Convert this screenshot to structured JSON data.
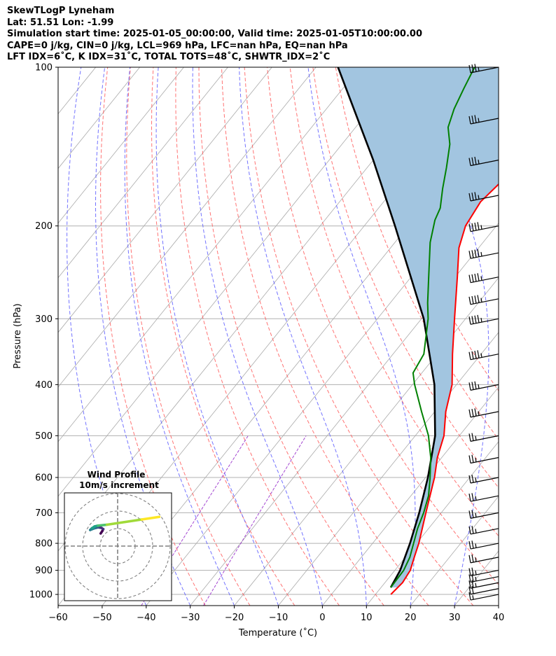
{
  "header": {
    "title": "SkewTLogP Lyneham",
    "location": "Lat: 51.51   Lon: -1.99",
    "times": "Simulation start time: 2025-01-05_00:00:00, Valid time: 2025-01-05T10:00:00.00",
    "indices_1": "CAPE=0 j/kg, CIN=0 j/kg, LCL=969 hPa, LFC=nan hPa, EQ=nan hPa",
    "indices_2": "LFT IDX=6˚C, K IDX=31˚C, TOTAL TOTS=48˚C, SHWTR_IDX=2˚C"
  },
  "chart_data": [
    {
      "type": "line",
      "kind": "skew-T log-P diagram",
      "xlabel": "Temperature (˚C)",
      "ylabel": "Pressure (hPa)",
      "xlim": [
        -60,
        40
      ],
      "ylim": [
        1050,
        100
      ],
      "y_scale": "log",
      "x_ticks": [
        "−60",
        "−50",
        "−40",
        "−30",
        "−20",
        "−10",
        "0",
        "10",
        "20",
        "30",
        "40"
      ],
      "y_ticks": [
        "100",
        "200",
        "300",
        "400",
        "500",
        "600",
        "700",
        "800",
        "900",
        "1000"
      ],
      "colors": {
        "temperature": "#ff0000",
        "dewpoint": "#008000",
        "parcel": "#000000",
        "shading": "#a2c5e0",
        "dry_adiabats": "#ff5a5a",
        "moist_adiabats": "#5a5aff",
        "mixing_ratio": "#9932cc",
        "isotherms": "#aaaaaa"
      },
      "series": [
        {
          "name": "",
          "role": "temperature",
          "points": [
            [
              1000,
              13.5
            ],
            [
              950,
              14.0
            ],
            [
              900,
              13.5
            ],
            [
              850,
              12.0
            ],
            [
              800,
              10.5
            ],
            [
              700,
              6.5
            ],
            [
              600,
              2.0
            ],
            [
              550,
              -1.0
            ],
            [
              500,
              -3.5
            ],
            [
              450,
              -7.5
            ],
            [
              400,
              -11.0
            ],
            [
              350,
              -16.5
            ],
            [
              300,
              -22.5
            ],
            [
              250,
              -29.5
            ],
            [
              220,
              -34.5
            ],
            [
              200,
              -37.0
            ],
            [
              180,
              -38.0
            ],
            [
              165,
              -37.0
            ],
            [
              150,
              -36.0
            ],
            [
              135,
              -37.0
            ],
            [
              120,
              -39.5
            ],
            [
              110,
              -43.0
            ],
            [
              100,
              -46.0
            ]
          ]
        },
        {
          "name": "",
          "role": "dewpoint",
          "points": [
            [
              970,
              12.2
            ],
            [
              900,
              12.0
            ],
            [
              850,
              11.0
            ],
            [
              750,
              7.5
            ],
            [
              700,
              6.0
            ],
            [
              650,
              4.0
            ],
            [
              600,
              1.0
            ],
            [
              550,
              -2.5
            ],
            [
              500,
              -7.0
            ],
            [
              450,
              -13.0
            ],
            [
              400,
              -19.5
            ],
            [
              380,
              -22.0
            ],
            [
              350,
              -23.0
            ],
            [
              300,
              -28.5
            ],
            [
              280,
              -31.5
            ],
            [
              250,
              -36.0
            ],
            [
              215,
              -42.0
            ],
            [
              195,
              -45.0
            ],
            [
              185,
              -46.0
            ],
            [
              170,
              -49.0
            ],
            [
              155,
              -52.0
            ],
            [
              140,
              -55.5
            ],
            [
              130,
              -59.0
            ],
            [
              120,
              -61.0
            ],
            [
              110,
              -62.5
            ],
            [
              100,
              -64.0
            ]
          ]
        },
        {
          "name": "",
          "role": "parcel",
          "points": [
            [
              970,
              12.2
            ],
            [
              900,
              11.2
            ],
            [
              800,
              8.5
            ],
            [
              700,
              5.0
            ],
            [
              600,
              0.5
            ],
            [
              500,
              -5.5
            ],
            [
              400,
              -15.0
            ],
            [
              300,
              -29.5
            ],
            [
              200,
              -53.0
            ],
            [
              150,
              -70.0
            ],
            [
              100,
              -95.0
            ]
          ]
        }
      ],
      "wind_barbs": [
        {
          "p": 1000,
          "speed_kt": 15
        },
        {
          "p": 975,
          "speed_kt": 20
        },
        {
          "p": 950,
          "speed_kt": 25
        },
        {
          "p": 925,
          "speed_kt": 25
        },
        {
          "p": 900,
          "speed_kt": 25
        },
        {
          "p": 850,
          "speed_kt": 25
        },
        {
          "p": 800,
          "speed_kt": 25
        },
        {
          "p": 750,
          "speed_kt": 25
        },
        {
          "p": 700,
          "speed_kt": 25
        },
        {
          "p": 650,
          "speed_kt": 25
        },
        {
          "p": 600,
          "speed_kt": 25
        },
        {
          "p": 550,
          "speed_kt": 25
        },
        {
          "p": 500,
          "speed_kt": 25
        },
        {
          "p": 450,
          "speed_kt": 35
        },
        {
          "p": 400,
          "speed_kt": 35
        },
        {
          "p": 350,
          "speed_kt": 45
        },
        {
          "p": 300,
          "speed_kt": 45
        },
        {
          "p": 275,
          "speed_kt": 45
        },
        {
          "p": 250,
          "speed_kt": 45
        },
        {
          "p": 225,
          "speed_kt": 45
        },
        {
          "p": 200,
          "speed_kt": 45
        },
        {
          "p": 175,
          "speed_kt": 35
        },
        {
          "p": 150,
          "speed_kt": 35
        },
        {
          "p": 125,
          "speed_kt": 35
        },
        {
          "p": 100,
          "speed_kt": 35
        }
      ]
    },
    {
      "type": "line",
      "kind": "hodograph",
      "title": "Wind Profile",
      "subtitle": "10m/s increment",
      "ring_step_ms": 10,
      "rings": 3,
      "series": [
        {
          "name": "",
          "role": "hodograph trace",
          "points": [
            [
              1.5,
              -2.0
            ],
            [
              2.5,
              -0.5
            ],
            [
              3.0,
              0.5
            ],
            [
              2.0,
              1.2
            ],
            [
              0.0,
              1.5
            ],
            [
              -2.0,
              1.0
            ],
            [
              -4.5,
              0.0
            ],
            [
              -3.5,
              1.0
            ],
            [
              -2.0,
              2.0
            ],
            [
              0.0,
              2.5
            ],
            [
              5.0,
              3.0
            ],
            [
              15.0,
              4.5
            ],
            [
              25.0,
              6.0
            ],
            [
              35.0,
              7.5
            ]
          ]
        }
      ]
    }
  ]
}
